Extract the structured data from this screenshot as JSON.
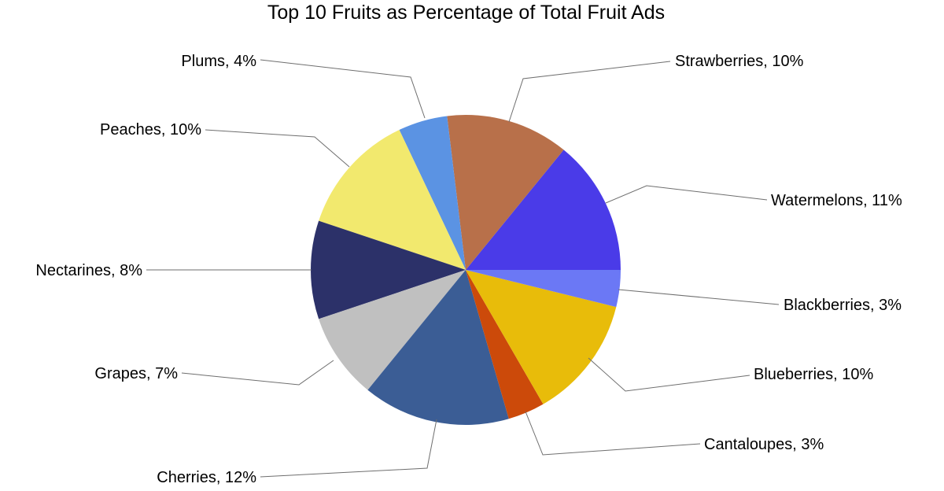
{
  "chart_data": {
    "type": "pie",
    "title": "Top 10 Fruits as Percentage of Total Fruit Ads",
    "start": "3 o'clock",
    "direction": "counterclockwise",
    "slices": [
      {
        "name": "Watermelons",
        "value": 11,
        "label": "Watermelons, 11%",
        "color": "#4a3be8"
      },
      {
        "name": "Strawberries",
        "value": 10,
        "label": "Strawberries, 10%",
        "color": "#b8704a"
      },
      {
        "name": "Plums",
        "value": 4,
        "label": "Plums, 4%",
        "color": "#5b93e3"
      },
      {
        "name": "Peaches",
        "value": 10,
        "label": "Peaches, 10%",
        "color": "#f2e96e"
      },
      {
        "name": "Nectarines",
        "value": 8,
        "label": "Nectarines, 8%",
        "color": "#2c3169"
      },
      {
        "name": "Grapes",
        "value": 7,
        "label": "Grapes, 7%",
        "color": "#c0c0c0"
      },
      {
        "name": "Cherries",
        "value": 12,
        "label": "Cherries, 12%",
        "color": "#3b5d95"
      },
      {
        "name": "Cantaloupes",
        "value": 3,
        "label": "Cantaloupes, 3%",
        "color": "#cc4a0a"
      },
      {
        "name": "Blueberries",
        "value": 10,
        "label": "Blueberries, 10%",
        "color": "#e8bc0a"
      },
      {
        "name": "Blackberries",
        "value": 3,
        "label": "Blackberries, 3%",
        "color": "#6b78f5"
      }
    ]
  }
}
